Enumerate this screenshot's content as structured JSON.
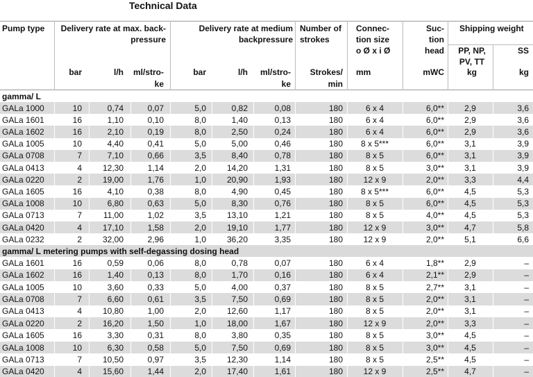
{
  "header": {
    "title": "Technical Data",
    "columns": [
      [
        "Pump type"
      ],
      [
        "Delivery rate at max. back-",
        "pressure"
      ],
      [
        "Delivery rate at medium",
        "backpressure"
      ],
      [
        "Number of",
        "strokes"
      ],
      [
        "Connec-",
        "tion size",
        "o Ø x i Ø"
      ],
      [
        "Suc-",
        "tion",
        "head"
      ],
      [
        "Shipping weight"
      ]
    ],
    "units": [
      [
        "bar"
      ],
      [
        "l/h"
      ],
      [
        "ml/stro-",
        "ke"
      ],
      [
        "bar"
      ],
      [
        "l/h"
      ],
      [
        "ml/stro-",
        "ke"
      ],
      [
        "Strokes/",
        "min"
      ],
      [
        "mm"
      ],
      [
        "mWC"
      ],
      [
        "PP, NP,",
        "PV, TT",
        "kg"
      ],
      [
        "SS",
        "kg"
      ]
    ]
  },
  "sections": [
    {
      "title": "gamma/ L",
      "rows": [
        [
          "GALa 1000",
          "10",
          "0,74",
          "0,07",
          "5,0",
          "0,82",
          "0,08",
          "180",
          "6 x 4",
          "6,0**",
          "2,9",
          "3,6"
        ],
        [
          "GALa 1601",
          "16",
          "1,10",
          "0,10",
          "8,0",
          "1,40",
          "0,13",
          "180",
          "6 x 4",
          "6,0**",
          "2,9",
          "3,6"
        ],
        [
          "GALa 1602",
          "16",
          "2,10",
          "0,19",
          "8,0",
          "2,50",
          "0,24",
          "180",
          "6 x 4",
          "6,0**",
          "2,9",
          "3,6"
        ],
        [
          "GALa 1005",
          "10",
          "4,40",
          "0,41",
          "5,0",
          "5,00",
          "0,46",
          "180",
          "8 x 5***",
          "6,0**",
          "3,1",
          "3,9"
        ],
        [
          "GALa 0708",
          "7",
          "7,10",
          "0,66",
          "3,5",
          "8,40",
          "0,78",
          "180",
          "8 x 5",
          "6,0**",
          "3,1",
          "3,9"
        ],
        [
          "GALa 0413",
          "4",
          "12,30",
          "1,14",
          "2,0",
          "14,20",
          "1,31",
          "180",
          "8 x 5",
          "3,0**",
          "3,1",
          "3,9"
        ],
        [
          "GALa 0220",
          "2",
          "19,00",
          "1,76",
          "1,0",
          "20,90",
          "1,93",
          "180",
          "12 x 9",
          "2,0**",
          "3,3",
          "4,4"
        ],
        [
          "GALa 1605",
          "16",
          "4,10",
          "0,38",
          "8,0",
          "4,90",
          "0,45",
          "180",
          "8 x 5***",
          "6,0**",
          "4,5",
          "5,3"
        ],
        [
          "GALa 1008",
          "10",
          "6,80",
          "0,63",
          "5,0",
          "8,30",
          "0,76",
          "180",
          "8 x 5",
          "6,0**",
          "4,5",
          "5,3"
        ],
        [
          "GALa 0713",
          "7",
          "11,00",
          "1,02",
          "3,5",
          "13,10",
          "1,21",
          "180",
          "8 x 5",
          "4,0**",
          "4,5",
          "5,3"
        ],
        [
          "GALa 0420",
          "4",
          "17,10",
          "1,58",
          "2,0",
          "19,10",
          "1,77",
          "180",
          "12 x 9",
          "3,0**",
          "4,7",
          "5,8"
        ],
        [
          "GALa 0232",
          "2",
          "32,00",
          "2,96",
          "1,0",
          "36,20",
          "3,35",
          "180",
          "12 x 9",
          "2,0**",
          "5,1",
          "6,6"
        ]
      ]
    },
    {
      "title": "gamma/ L metering pumps with self-degassing dosing head",
      "rows": [
        [
          "GALa 1601",
          "16",
          "0,59",
          "0,06",
          "8,0",
          "0,78",
          "0,07",
          "180",
          "6 x 4",
          "1,8**",
          "2,9",
          "–"
        ],
        [
          "GALa 1602",
          "16",
          "1,40",
          "0,13",
          "8,0",
          "1,70",
          "0,16",
          "180",
          "6 x 4",
          "2,1**",
          "2,9",
          "–"
        ],
        [
          "GALa 1005",
          "10",
          "3,60",
          "0,33",
          "5,0",
          "4,00",
          "0,37",
          "180",
          "8 x 5",
          "2,7**",
          "3,1",
          "–"
        ],
        [
          "GALa 0708",
          "7",
          "6,60",
          "0,61",
          "3,5",
          "7,50",
          "0,69",
          "180",
          "8 x 5",
          "2,0**",
          "3,1",
          "–"
        ],
        [
          "GALa 0413",
          "4",
          "10,80",
          "1,00",
          "2,0",
          "12,60",
          "1,17",
          "180",
          "8 x 5",
          "2,0**",
          "3,1",
          "–"
        ],
        [
          "GALa 0220",
          "2",
          "16,20",
          "1,50",
          "1,0",
          "18,00",
          "1,67",
          "180",
          "12 x 9",
          "2,0**",
          "3,3",
          "–"
        ],
        [
          "GALa 1605",
          "16",
          "3,30",
          "0,31",
          "8,0",
          "3,80",
          "0,35",
          "180",
          "8 x 5",
          "3,0**",
          "4,5",
          "–"
        ],
        [
          "GALa 1008",
          "10",
          "6,30",
          "0,58",
          "5,0",
          "7,50",
          "0,69",
          "180",
          "8 x 5",
          "3,0**",
          "4,5",
          "–"
        ],
        [
          "GALa 0713",
          "7",
          "10,50",
          "0,97",
          "3,5",
          "12,30",
          "1,14",
          "180",
          "8 x 5",
          "2,5**",
          "4,5",
          "–"
        ],
        [
          "GALa 0420",
          "4",
          "15,60",
          "1,44",
          "2,0",
          "17,40",
          "1,61",
          "180",
          "12 x 9",
          "2,5**",
          "4,7",
          "–"
        ]
      ]
    }
  ]
}
